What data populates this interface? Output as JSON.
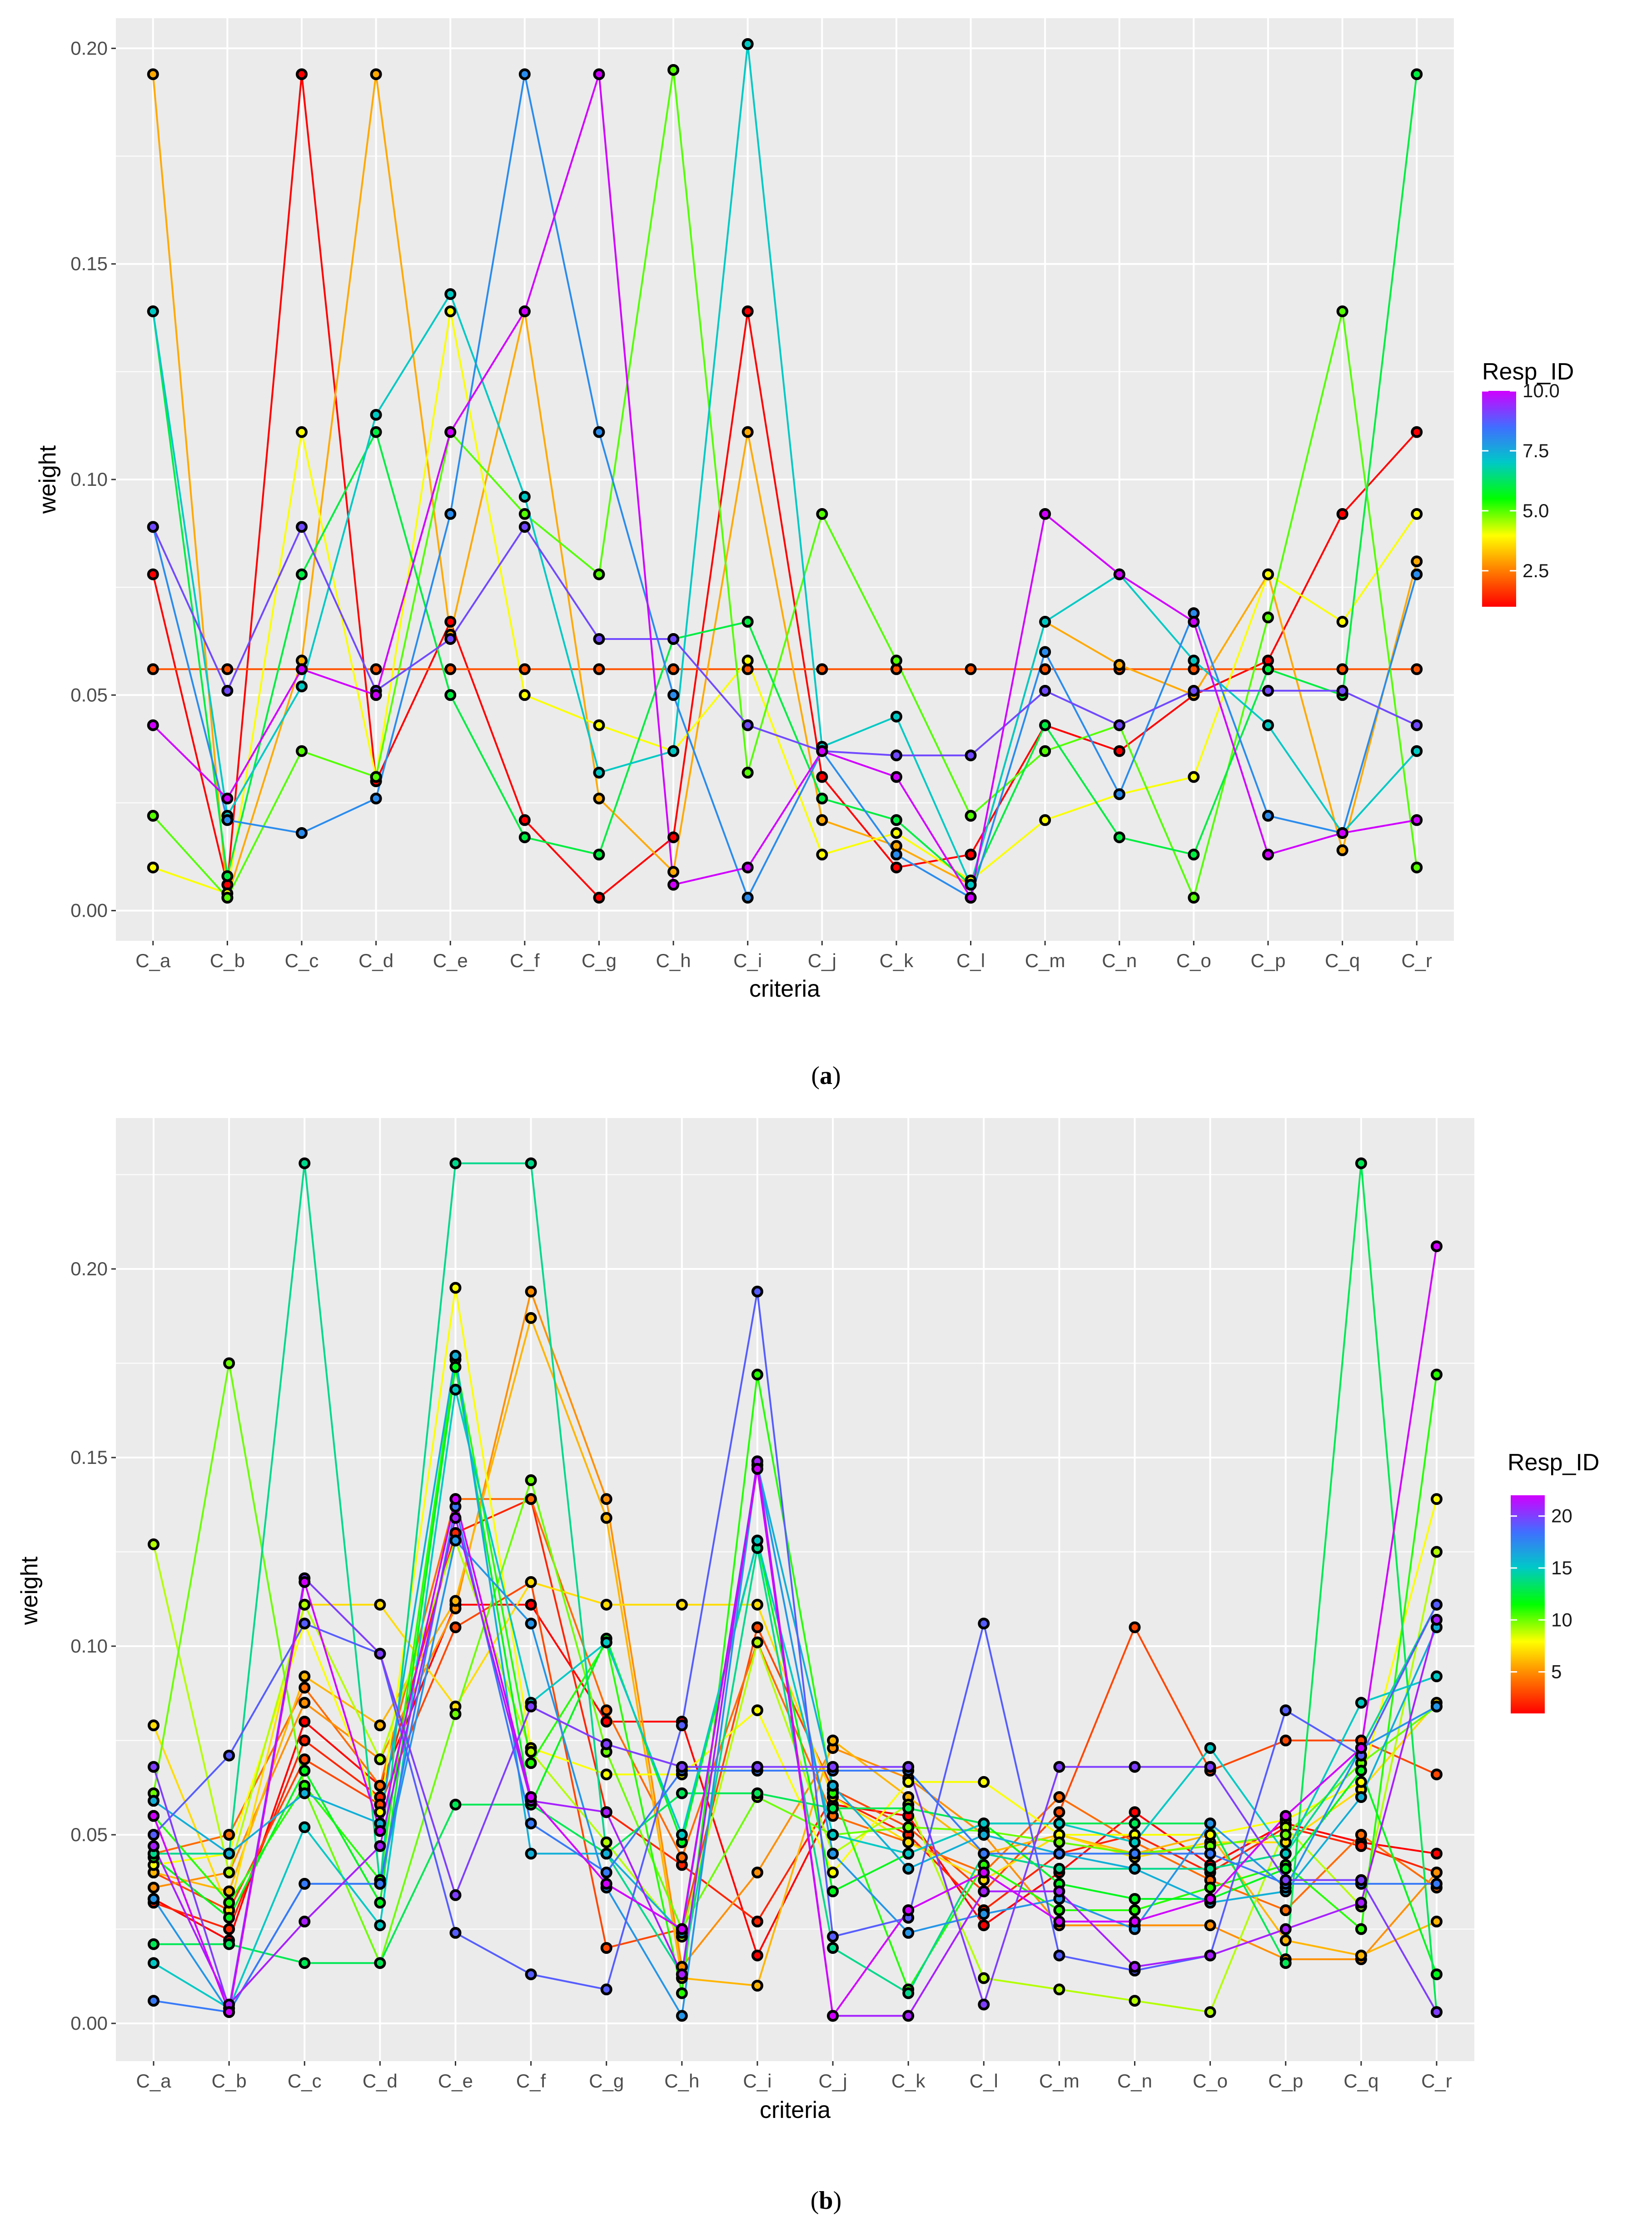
{
  "chart_data": [
    {
      "type": "line",
      "panel": "a",
      "caption_label": "a",
      "xlabel": "criteria",
      "ylabel": "weight",
      "categories": [
        "C_a",
        "C_b",
        "C_c",
        "C_d",
        "C_e",
        "C_f",
        "C_g",
        "C_h",
        "C_i",
        "C_j",
        "C_k",
        "C_l",
        "C_m",
        "C_n",
        "C_o",
        "C_p",
        "C_q",
        "C_r"
      ],
      "ylim": [
        -0.007,
        0.207
      ],
      "y_ticks": [
        0.0,
        0.05,
        0.1,
        0.15,
        0.2
      ],
      "y_tick_labels": [
        "0.00",
        "0.05",
        "0.10",
        "0.15",
        "0.20"
      ],
      "grid": true,
      "legend": {
        "title": "Resp_ID",
        "position": "right",
        "min": 1,
        "max": 10,
        "breaks": [
          2.5,
          5.0,
          7.5,
          10.0
        ],
        "labels": [
          "2.5",
          "5.0",
          "7.5",
          "10.0"
        ]
      },
      "series": [
        {
          "resp_id": 1,
          "values": [
            0.078,
            0.006,
            0.194,
            0.03,
            0.067,
            0.021,
            0.003,
            0.017,
            0.139,
            0.031,
            0.01,
            0.013,
            0.043,
            0.037,
            0.05,
            0.058,
            0.092,
            0.111
          ]
        },
        {
          "resp_id": 2,
          "values": [
            0.056,
            0.056,
            0.056,
            0.056,
            0.056,
            0.056,
            0.056,
            0.056,
            0.056,
            0.056,
            0.056,
            0.056,
            0.056,
            0.056,
            0.056,
            0.056,
            0.056,
            0.056
          ]
        },
        {
          "resp_id": 3,
          "values": [
            0.194,
            0.003,
            0.058,
            0.194,
            0.064,
            0.139,
            0.026,
            0.009,
            0.111,
            0.021,
            0.015,
            0.006,
            0.067,
            0.057,
            0.05,
            0.078,
            0.014,
            0.081
          ]
        },
        {
          "resp_id": 4,
          "values": [
            0.01,
            0.004,
            0.111,
            0.031,
            0.139,
            0.05,
            0.043,
            0.037,
            0.058,
            0.013,
            0.018,
            0.007,
            0.021,
            0.027,
            0.031,
            0.078,
            0.067,
            0.092
          ]
        },
        {
          "resp_id": 5,
          "values": [
            0.022,
            0.003,
            0.037,
            0.031,
            0.111,
            0.092,
            0.078,
            0.195,
            0.032,
            0.092,
            0.058,
            0.022,
            0.037,
            0.043,
            0.003,
            0.068,
            0.139,
            0.01
          ]
        },
        {
          "resp_id": 6,
          "values": [
            0.139,
            0.008,
            0.078,
            0.111,
            0.05,
            0.017,
            0.013,
            0.063,
            0.067,
            0.026,
            0.021,
            0.006,
            0.043,
            0.017,
            0.013,
            0.056,
            0.05,
            0.194
          ]
        },
        {
          "resp_id": 7,
          "values": [
            0.139,
            0.022,
            0.052,
            0.115,
            0.143,
            0.096,
            0.032,
            0.037,
            0.201,
            0.038,
            0.045,
            0.006,
            0.067,
            0.078,
            0.058,
            0.043,
            0.018,
            0.037
          ]
        },
        {
          "resp_id": 8,
          "values": [
            0.089,
            0.021,
            0.018,
            0.026,
            0.092,
            0.194,
            0.111,
            0.05,
            0.003,
            0.037,
            0.013,
            0.003,
            0.06,
            0.027,
            0.069,
            0.022,
            0.018,
            0.078
          ]
        },
        {
          "resp_id": 9,
          "values": [
            0.089,
            0.051,
            0.089,
            0.051,
            0.063,
            0.089,
            0.063,
            0.063,
            0.043,
            0.037,
            0.036,
            0.036,
            0.051,
            0.043,
            0.051,
            0.051,
            0.051,
            0.043
          ]
        },
        {
          "resp_id": 10,
          "values": [
            0.043,
            0.026,
            0.056,
            0.05,
            0.111,
            0.139,
            0.194,
            0.006,
            0.01,
            0.037,
            0.031,
            0.003,
            0.092,
            0.078,
            0.067,
            0.013,
            0.018,
            0.021
          ]
        }
      ]
    },
    {
      "type": "line",
      "panel": "b",
      "caption_label": "b",
      "xlabel": "criteria",
      "ylabel": "weight",
      "categories": [
        "C_a",
        "C_b",
        "C_c",
        "C_d",
        "C_e",
        "C_f",
        "C_g",
        "C_h",
        "C_i",
        "C_j",
        "C_k",
        "C_l",
        "C_m",
        "C_n",
        "C_o",
        "C_p",
        "C_q",
        "C_r"
      ],
      "ylim": [
        -0.01,
        0.24
      ],
      "y_ticks": [
        0.0,
        0.05,
        0.1,
        0.15,
        0.2
      ],
      "y_tick_labels": [
        "0.00",
        "0.05",
        "0.10",
        "0.15",
        "0.20"
      ],
      "grid": true,
      "legend": {
        "title": "Resp_ID",
        "position": "right",
        "min": 1,
        "max": 22,
        "breaks": [
          5,
          10,
          15,
          20
        ],
        "labels": [
          "5",
          "10",
          "15",
          "20"
        ]
      },
      "series": [
        {
          "resp_id": 1,
          "values": [
            0.033,
            0.022,
            0.08,
            0.063,
            0.111,
            0.111,
            0.08,
            0.08,
            0.018,
            0.058,
            0.055,
            0.026,
            0.04,
            0.056,
            0.042,
            0.053,
            0.048,
            0.045
          ]
        },
        {
          "resp_id": 2,
          "values": [
            0.032,
            0.025,
            0.075,
            0.06,
            0.13,
            0.139,
            0.056,
            0.042,
            0.027,
            0.06,
            0.05,
            0.03,
            0.045,
            0.05,
            0.04,
            0.052,
            0.047,
            0.04
          ]
        },
        {
          "resp_id": 3,
          "values": [
            0.04,
            0.03,
            0.07,
            0.058,
            0.105,
            0.117,
            0.02,
            0.025,
            0.105,
            0.062,
            0.052,
            0.035,
            0.056,
            0.105,
            0.067,
            0.075,
            0.075,
            0.066
          ]
        },
        {
          "resp_id": 4,
          "values": [
            0.045,
            0.05,
            0.089,
            0.063,
            0.139,
            0.139,
            0.083,
            0.044,
            0.101,
            0.055,
            0.048,
            0.04,
            0.06,
            0.048,
            0.038,
            0.03,
            0.05,
            0.036
          ]
        },
        {
          "resp_id": 5,
          "values": [
            0.036,
            0.04,
            0.085,
            0.07,
            0.11,
            0.194,
            0.139,
            0.015,
            0.04,
            0.073,
            0.065,
            0.05,
            0.026,
            0.026,
            0.026,
            0.017,
            0.017,
            0.04
          ]
        },
        {
          "resp_id": 6,
          "values": [
            0.04,
            0.035,
            0.092,
            0.079,
            0.112,
            0.187,
            0.134,
            0.012,
            0.01,
            0.075,
            0.06,
            0.045,
            0.05,
            0.045,
            0.05,
            0.022,
            0.018,
            0.027
          ]
        },
        {
          "resp_id": 7,
          "values": [
            0.079,
            0.03,
            0.111,
            0.111,
            0.084,
            0.117,
            0.111,
            0.111,
            0.111,
            0.06,
            0.048,
            0.038,
            0.05,
            0.044,
            0.048,
            0.048,
            0.062,
            0.085
          ]
        },
        {
          "resp_id": 8,
          "values": [
            0.042,
            0.045,
            0.106,
            0.056,
            0.195,
            0.073,
            0.066,
            0.066,
            0.083,
            0.04,
            0.064,
            0.064,
            0.05,
            0.05,
            0.05,
            0.054,
            0.064,
            0.139
          ]
        },
        {
          "resp_id": 9,
          "values": [
            0.127,
            0.04,
            0.111,
            0.07,
            0.128,
            0.072,
            0.048,
            0.023,
            0.101,
            0.045,
            0.058,
            0.012,
            0.009,
            0.006,
            0.003,
            0.052,
            0.031,
            0.125
          ]
        },
        {
          "resp_id": 10,
          "values": [
            0.061,
            0.175,
            0.062,
            0.016,
            0.082,
            0.144,
            0.072,
            0.025,
            0.06,
            0.05,
            0.052,
            0.051,
            0.048,
            0.045,
            0.047,
            0.05,
            0.069,
            0.084
          ]
        },
        {
          "resp_id": 11,
          "values": [
            0.055,
            0.032,
            0.063,
            0.038,
            0.176,
            0.069,
            0.101,
            0.008,
            0.172,
            0.061,
            0.009,
            0.042,
            0.03,
            0.03,
            0.036,
            0.042,
            0.025,
            0.172
          ]
        },
        {
          "resp_id": 12,
          "values": [
            0.044,
            0.028,
            0.067,
            0.032,
            0.174,
            0.058,
            0.102,
            0.048,
            0.128,
            0.035,
            0.045,
            0.053,
            0.037,
            0.033,
            0.033,
            0.041,
            0.067,
            0.013
          ]
        },
        {
          "resp_id": 13,
          "values": [
            0.021,
            0.021,
            0.016,
            0.016,
            0.058,
            0.058,
            0.045,
            0.061,
            0.061,
            0.057,
            0.057,
            0.053,
            0.053,
            0.053,
            0.053,
            0.016,
            0.228,
            0.003
          ]
        },
        {
          "resp_id": 14,
          "values": [
            0.045,
            0.045,
            0.228,
            0.037,
            0.228,
            0.228,
            0.045,
            0.013,
            0.126,
            0.02,
            0.008,
            0.045,
            0.041,
            0.041,
            0.041,
            0.045,
            0.073,
            0.111
          ]
        },
        {
          "resp_id": 15,
          "values": [
            0.016,
            0.004,
            0.052,
            0.026,
            0.168,
            0.085,
            0.101,
            0.05,
            0.128,
            0.05,
            0.045,
            0.053,
            0.053,
            0.048,
            0.073,
            0.045,
            0.085,
            0.092
          ]
        },
        {
          "resp_id": 16,
          "values": [
            0.059,
            0.045,
            0.061,
            0.053,
            0.177,
            0.045,
            0.045,
            0.024,
            0.148,
            0.063,
            0.041,
            0.05,
            0.045,
            0.041,
            0.032,
            0.035,
            0.06,
            0.105
          ]
        },
        {
          "resp_id": 17,
          "values": [
            0.033,
            0.003,
            0.037,
            0.037,
            0.128,
            0.106,
            0.036,
            0.002,
            0.148,
            0.045,
            0.024,
            0.029,
            0.033,
            0.025,
            0.053,
            0.036,
            0.073,
            0.084
          ]
        },
        {
          "resp_id": 18,
          "values": [
            0.006,
            0.003,
            0.037,
            0.037,
            0.137,
            0.053,
            0.04,
            0.067,
            0.067,
            0.067,
            0.067,
            0.045,
            0.045,
            0.045,
            0.045,
            0.037,
            0.037,
            0.037
          ]
        },
        {
          "resp_id": 19,
          "values": [
            0.05,
            0.071,
            0.106,
            0.098,
            0.024,
            0.013,
            0.009,
            0.079,
            0.194,
            0.023,
            0.028,
            0.106,
            0.018,
            0.014,
            0.018,
            0.083,
            0.071,
            0.111
          ]
        },
        {
          "resp_id": 20,
          "values": [
            0.068,
            0.004,
            0.118,
            0.098,
            0.034,
            0.084,
            0.074,
            0.068,
            0.068,
            0.068,
            0.068,
            0.005,
            0.068,
            0.068,
            0.068,
            0.038,
            0.038,
            0.003
          ]
        },
        {
          "resp_id": 21,
          "values": [
            0.047,
            0.005,
            0.027,
            0.047,
            0.134,
            0.059,
            0.056,
            0.013,
            0.149,
            0.002,
            0.002,
            0.035,
            0.035,
            0.015,
            0.018,
            0.025,
            0.032,
            0.107
          ]
        },
        {
          "resp_id": 22,
          "values": [
            0.055,
            0.003,
            0.117,
            0.051,
            0.139,
            0.06,
            0.037,
            0.025,
            0.147,
            0.002,
            0.03,
            0.04,
            0.027,
            0.027,
            0.033,
            0.055,
            0.073,
            0.206
          ]
        }
      ]
    }
  ]
}
